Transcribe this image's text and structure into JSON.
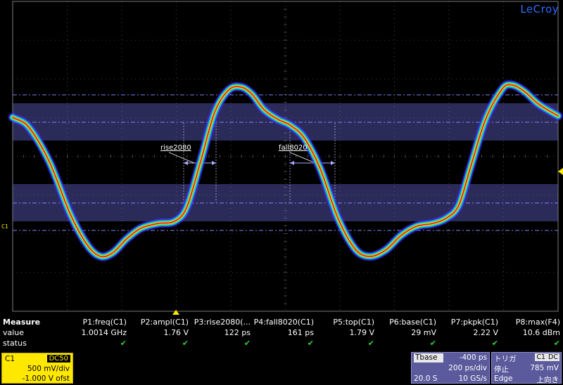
{
  "brand": "LeCroy",
  "channel_marker": "C1",
  "cursors": {
    "rise_label": "rise2080",
    "fall_label": "fall8020"
  },
  "measure": {
    "title": "Measure",
    "row_value": "value",
    "row_status": "status",
    "status_glyph": "✔",
    "params": [
      {
        "name": "P1:freq(C1)",
        "value": "1.0014 GHz"
      },
      {
        "name": "P2:ampl(C1)",
        "value": "1.76 V"
      },
      {
        "name": "P3:rise2080(...",
        "value": "122 ps"
      },
      {
        "name": "P4:fall8020(C1)",
        "value": "161 ps"
      },
      {
        "name": "P5:top(C1)",
        "value": "1.79 V"
      },
      {
        "name": "P6:base(C1)",
        "value": "29 mV"
      },
      {
        "name": "P7:pkpk(C1)",
        "value": "2.22 V"
      },
      {
        "name": "P8:max(F4)",
        "value": "10.6 dBm"
      }
    ]
  },
  "channel_box": {
    "name": "C1",
    "coupling": "DC50",
    "vdiv": "500 mV/div",
    "offset": "-1.000 V ofst"
  },
  "timebase": {
    "label": "Tbase",
    "delay": "-400 ps",
    "tdiv": "200 ps/div",
    "samples": "20.0 S",
    "rate": "10 GS/s"
  },
  "trigger": {
    "label": "トリガ",
    "source": "C1",
    "coupling": "DC",
    "state": "停止",
    "level": "785 mV",
    "type": "Edge",
    "slope": "上向き"
  },
  "colors": {
    "grid": "#7a7a7a",
    "cursor": "#8080ff",
    "band": "#3a3a78",
    "channel": "#ffe800",
    "panel": "#5a5a9c"
  }
}
